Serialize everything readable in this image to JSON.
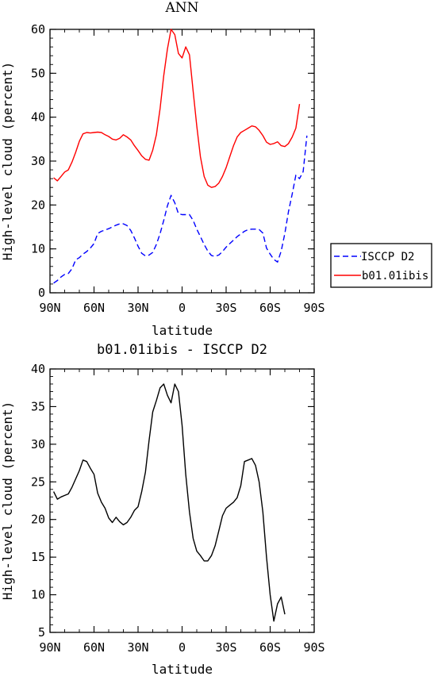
{
  "chart_data": [
    {
      "type": "line",
      "title": "ANN",
      "xlabel": "latitude",
      "ylabel": "High-level cloud (percent)",
      "xlim": [
        90,
        -90
      ],
      "ylim": [
        0,
        60
      ],
      "xticks": [
        90,
        60,
        30,
        0,
        -30,
        -60,
        -90
      ],
      "xtick_labels": [
        "90N",
        "60N",
        "30N",
        "0",
        "30S",
        "60S",
        "90S"
      ],
      "yticks": [
        0,
        10,
        20,
        30,
        40,
        50,
        60
      ],
      "ytick_labels": [
        "0",
        "10",
        "20",
        "30",
        "40",
        "50",
        "60"
      ],
      "legend_position": "right, outside plot area",
      "grid": false,
      "series": [
        {
          "name": "ISCCP D2",
          "color": "#0000ff",
          "dash": "dashed",
          "points": [
            [
              87.5,
              2.2
            ],
            [
              85,
              2.8
            ],
            [
              82.5,
              3.6
            ],
            [
              80,
              4.2
            ],
            [
              77.5,
              4.4
            ],
            [
              75,
              5.5
            ],
            [
              72.5,
              7.5
            ],
            [
              70,
              8.0
            ],
            [
              67.5,
              8.8
            ],
            [
              65,
              9.4
            ],
            [
              62.5,
              10.2
            ],
            [
              60,
              11.2
            ],
            [
              57.5,
              13.5
            ],
            [
              55,
              14.0
            ],
            [
              52.5,
              14.3
            ],
            [
              50,
              14.6
            ],
            [
              47.5,
              15.0
            ],
            [
              45,
              15.4
            ],
            [
              42.5,
              15.7
            ],
            [
              40,
              15.7
            ],
            [
              37.5,
              15.3
            ],
            [
              35,
              14.2
            ],
            [
              32.5,
              12.5
            ],
            [
              30,
              10.6
            ],
            [
              27.5,
              9.0
            ],
            [
              25,
              8.4
            ],
            [
              22.5,
              8.6
            ],
            [
              20,
              9.2
            ],
            [
              17.5,
              11.0
            ],
            [
              15,
              13.5
            ],
            [
              12.5,
              16.5
            ],
            [
              10,
              19.8
            ],
            [
              7.5,
              22.2
            ],
            [
              5,
              20.5
            ],
            [
              2.5,
              18.0
            ],
            [
              0,
              17.8
            ],
            [
              -2.5,
              17.8
            ],
            [
              -5,
              17.8
            ],
            [
              -7.5,
              16.5
            ],
            [
              -10,
              14.5
            ],
            [
              -12.5,
              12.8
            ],
            [
              -15,
              11.0
            ],
            [
              -17.5,
              9.5
            ],
            [
              -20,
              8.5
            ],
            [
              -22.5,
              8.3
            ],
            [
              -25,
              8.6
            ],
            [
              -27.5,
              9.4
            ],
            [
              -30,
              10.4
            ],
            [
              -32.5,
              11.2
            ],
            [
              -35,
              12.0
            ],
            [
              -37.5,
              12.8
            ],
            [
              -40,
              13.4
            ],
            [
              -42.5,
              14.0
            ],
            [
              -45,
              14.4
            ],
            [
              -47.5,
              14.5
            ],
            [
              -50,
              14.5
            ],
            [
              -52.5,
              14.4
            ],
            [
              -55,
              13.6
            ],
            [
              -57.5,
              10.2
            ],
            [
              -60,
              8.8
            ],
            [
              -62.5,
              7.6
            ],
            [
              -65,
              7.0
            ],
            [
              -67.5,
              9.5
            ],
            [
              -70,
              13.5
            ],
            [
              -72.5,
              18.5
            ],
            [
              -75,
              22.5
            ],
            [
              -77.5,
              26.8
            ],
            [
              -80,
              26.0
            ],
            [
              -82.5,
              27.6
            ],
            [
              -85,
              35.8
            ]
          ]
        },
        {
          "name": "b01.01ibis",
          "color": "#ff0000",
          "dash": "solid",
          "points": [
            [
              87.5,
              26.2
            ],
            [
              85,
              25.5
            ],
            [
              82.5,
              26.5
            ],
            [
              80,
              27.5
            ],
            [
              77.5,
              28.0
            ],
            [
              75,
              29.8
            ],
            [
              72.5,
              32.0
            ],
            [
              70,
              34.5
            ],
            [
              67.5,
              36.2
            ],
            [
              65,
              36.5
            ],
            [
              62.5,
              36.4
            ],
            [
              60,
              36.5
            ],
            [
              57.5,
              36.6
            ],
            [
              55,
              36.5
            ],
            [
              52.5,
              36.0
            ],
            [
              50,
              35.6
            ],
            [
              47.5,
              35.0
            ],
            [
              45,
              34.8
            ],
            [
              42.5,
              35.2
            ],
            [
              40,
              36.0
            ],
            [
              37.5,
              35.5
            ],
            [
              35,
              34.8
            ],
            [
              32.5,
              33.5
            ],
            [
              30,
              32.4
            ],
            [
              27.5,
              31.2
            ],
            [
              25,
              30.4
            ],
            [
              22.5,
              30.2
            ],
            [
              20,
              32.5
            ],
            [
              17.5,
              36.0
            ],
            [
              15,
              42.0
            ],
            [
              12.5,
              49.5
            ],
            [
              10,
              55.5
            ],
            [
              7.5,
              60.0
            ],
            [
              5,
              58.8
            ],
            [
              2.5,
              54.5
            ],
            [
              0,
              53.5
            ],
            [
              -2.5,
              56.0
            ],
            [
              -5,
              54.2
            ],
            [
              -7.5,
              46.0
            ],
            [
              -10,
              38.0
            ],
            [
              -12.5,
              31.0
            ],
            [
              -15,
              26.5
            ],
            [
              -17.5,
              24.5
            ],
            [
              -20,
              24.0
            ],
            [
              -22.5,
              24.2
            ],
            [
              -25,
              25.0
            ],
            [
              -27.5,
              26.5
            ],
            [
              -30,
              28.5
            ],
            [
              -32.5,
              31.0
            ],
            [
              -35,
              33.5
            ],
            [
              -37.5,
              35.5
            ],
            [
              -40,
              36.5
            ],
            [
              -42.5,
              37.0
            ],
            [
              -45,
              37.5
            ],
            [
              -47.5,
              38.0
            ],
            [
              -50,
              37.8
            ],
            [
              -52.5,
              37.0
            ],
            [
              -55,
              35.8
            ],
            [
              -57.5,
              34.3
            ],
            [
              -60,
              33.8
            ],
            [
              -62.5,
              34.0
            ],
            [
              -65,
              34.4
            ],
            [
              -67.5,
              33.5
            ],
            [
              -70,
              33.3
            ],
            [
              -72.5,
              34.0
            ],
            [
              -75,
              35.5
            ],
            [
              -77.5,
              37.5
            ],
            [
              -80,
              43.0
            ]
          ]
        }
      ]
    },
    {
      "type": "line",
      "title": "b01.01ibis - ISCCP D2",
      "xlabel": "latitude",
      "ylabel": "High-level cloud (percent)",
      "xlim": [
        90,
        -90
      ],
      "ylim": [
        5,
        40
      ],
      "xticks": [
        90,
        60,
        30,
        0,
        -30,
        -60,
        -90
      ],
      "xtick_labels": [
        "90N",
        "60N",
        "30N",
        "0",
        "30S",
        "60S",
        "90S"
      ],
      "yticks": [
        5,
        10,
        15,
        20,
        25,
        30,
        35,
        40
      ],
      "ytick_labels": [
        "5",
        "10",
        "15",
        "20",
        "25",
        "30",
        "35",
        "40"
      ],
      "grid": false,
      "series": [
        {
          "color": "#000000",
          "dash": "solid",
          "points": [
            [
              87.5,
              23.7
            ],
            [
              85,
              22.7
            ],
            [
              82.5,
              23.0
            ],
            [
              80,
              23.2
            ],
            [
              77.5,
              23.4
            ],
            [
              75,
              24.3
            ],
            [
              72.5,
              25.4
            ],
            [
              70,
              26.5
            ],
            [
              67.5,
              27.9
            ],
            [
              65,
              27.7
            ],
            [
              62.5,
              26.8
            ],
            [
              60,
              26.0
            ],
            [
              57.5,
              23.5
            ],
            [
              55,
              22.3
            ],
            [
              52.5,
              21.5
            ],
            [
              50,
              20.2
            ],
            [
              47.5,
              19.6
            ],
            [
              45,
              20.3
            ],
            [
              42.5,
              19.7
            ],
            [
              40,
              19.3
            ],
            [
              37.5,
              19.6
            ],
            [
              35,
              20.3
            ],
            [
              32.5,
              21.2
            ],
            [
              30,
              21.7
            ],
            [
              27.5,
              23.7
            ],
            [
              25,
              26.3
            ],
            [
              22.5,
              30.5
            ],
            [
              20,
              34.3
            ],
            [
              17.5,
              35.8
            ],
            [
              15,
              37.5
            ],
            [
              12.5,
              38.0
            ],
            [
              10,
              36.5
            ],
            [
              7.5,
              35.5
            ],
            [
              5,
              38.0
            ],
            [
              2.5,
              37.0
            ],
            [
              0,
              32.5
            ],
            [
              -2.5,
              26.0
            ],
            [
              -5,
              21.0
            ],
            [
              -7.5,
              17.5
            ],
            [
              -10,
              15.8
            ],
            [
              -12.5,
              15.2
            ],
            [
              -15,
              14.5
            ],
            [
              -17.5,
              14.5
            ],
            [
              -20,
              15.2
            ],
            [
              -22.5,
              16.5
            ],
            [
              -25,
              18.5
            ],
            [
              -27.5,
              20.5
            ],
            [
              -30,
              21.5
            ],
            [
              -32.5,
              21.9
            ],
            [
              -35,
              22.3
            ],
            [
              -37.5,
              22.9
            ],
            [
              -40,
              24.5
            ],
            [
              -42.5,
              27.7
            ],
            [
              -45,
              27.9
            ],
            [
              -47.5,
              28.1
            ],
            [
              -50,
              27.2
            ],
            [
              -52.5,
              25.0
            ],
            [
              -55,
              21.0
            ],
            [
              -57.5,
              15.0
            ],
            [
              -60,
              10.0
            ],
            [
              -62.5,
              6.5
            ],
            [
              -65,
              8.8
            ],
            [
              -67.5,
              9.7
            ],
            [
              -70,
              7.4
            ]
          ]
        }
      ]
    }
  ]
}
